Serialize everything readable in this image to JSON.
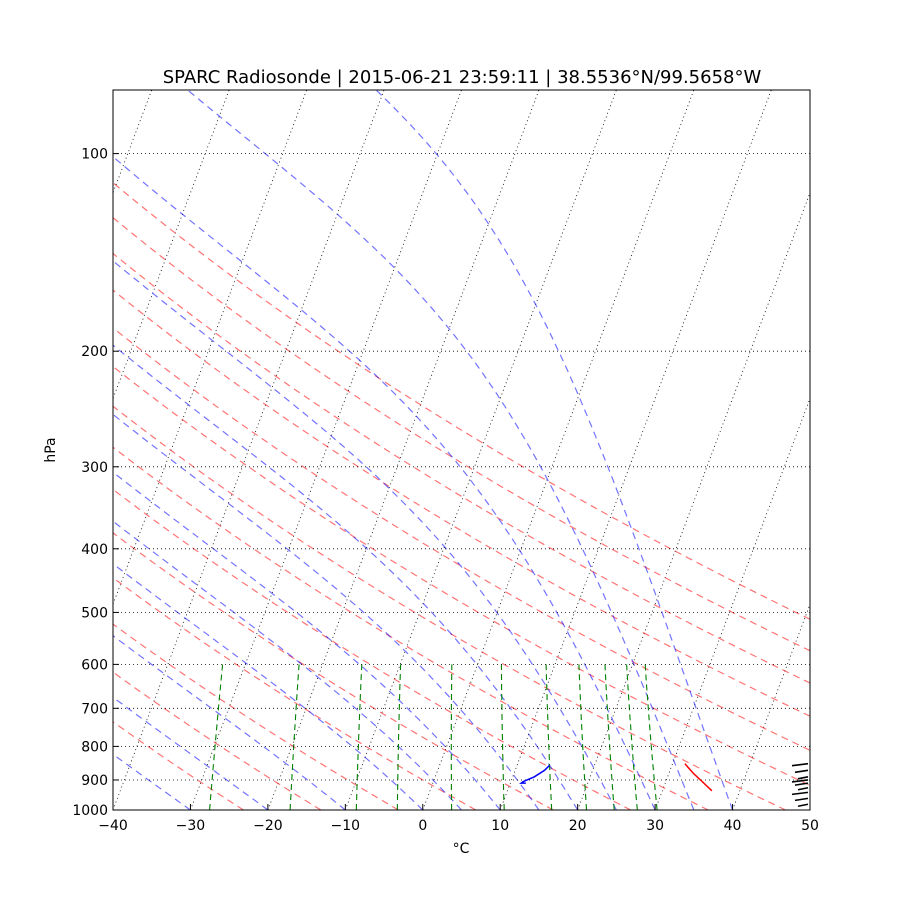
{
  "chart_data": {
    "type": "line",
    "title": "SPARC Radiosonde | 2015-06-21 23:59:11 | 38.5536°N/99.5658°W",
    "xlabel": "°C",
    "ylabel": "hPa",
    "xlim": [
      -40,
      50
    ],
    "ylim_hpa": [
      1000,
      80
    ],
    "x_ticks": [
      -40,
      -30,
      -20,
      -10,
      0,
      10,
      20,
      30,
      40,
      50
    ],
    "y_ticks": [
      100,
      200,
      300,
      400,
      500,
      600,
      700,
      800,
      900,
      1000
    ],
    "grid": true,
    "skew": 35,
    "series": [
      {
        "role": "temperature",
        "color": "#ff0000",
        "points": [
          [
            31.6,
            850
          ],
          [
            33.2,
            880
          ],
          [
            34.4,
            900
          ],
          [
            36.4,
            935
          ]
        ]
      },
      {
        "role": "dewpoint",
        "color": "#0000ff",
        "points": [
          [
            14.2,
            855
          ],
          [
            13.8,
            870
          ],
          [
            12.8,
            890
          ],
          [
            11.6,
            905
          ],
          [
            11.4,
            910
          ],
          [
            12.0,
            910
          ]
        ]
      }
    ],
    "background_lines": {
      "isotherms": {
        "color": "#000000",
        "style": "dotted",
        "values": [
          -120,
          -110,
          -100,
          -90,
          -80,
          -70,
          -60,
          -50,
          -40,
          -30,
          -20,
          -10,
          0,
          10,
          20,
          30,
          40,
          50
        ]
      },
      "dry_adiabats": {
        "color": "#ff0000",
        "style": "dashed",
        "theta_k": [
          250,
          260,
          270,
          280,
          290,
          300,
          310,
          320,
          330,
          340,
          350,
          360,
          370,
          380
        ]
      },
      "moist_adiabats": {
        "color": "#0000ff",
        "style": "dashed",
        "theta_w_c": [
          -40,
          -30,
          -20,
          -10,
          0,
          5,
          10,
          15,
          20,
          25,
          30,
          35,
          40
        ]
      },
      "mixing_ratio": {
        "color": "#008000",
        "style": "dashed",
        "g_per_kg": [
          0.4,
          1,
          2,
          3,
          5,
          8,
          12,
          16,
          20,
          24,
          28
        ]
      }
    },
    "wind_barbs": {
      "color": "#000000",
      "levels_hpa": [
        850,
        870,
        890,
        900,
        910,
        925,
        940,
        960,
        980
      ]
    }
  }
}
